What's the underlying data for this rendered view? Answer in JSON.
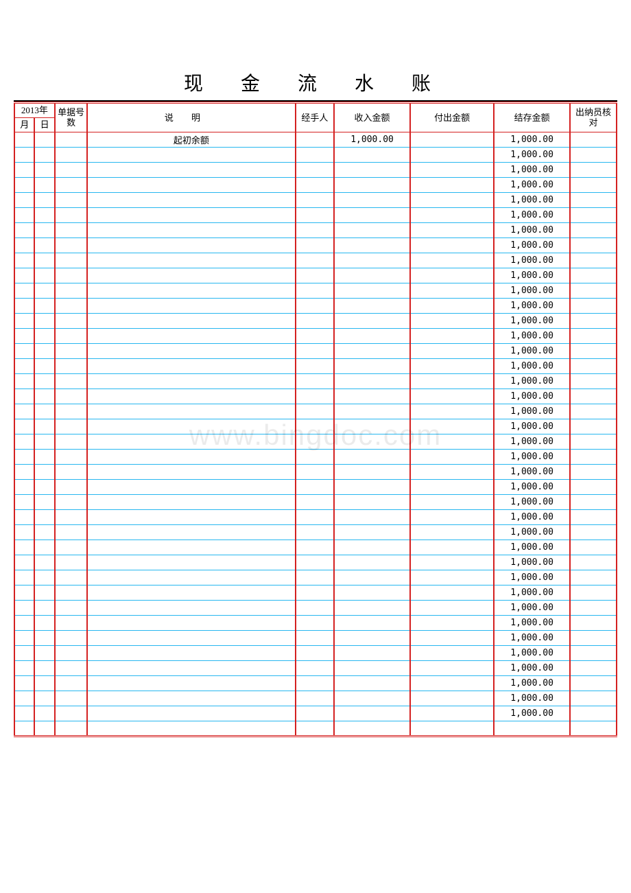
{
  "title": "现 金 流 水 账",
  "watermark": "www.bingdoc.com",
  "header": {
    "year": "2013年",
    "month": "月",
    "day": "日",
    "docno": "单据号数",
    "desc_a": "说",
    "desc_b": "明",
    "handler": "经手人",
    "income": "收入金额",
    "payout": "付出金额",
    "balance": "结存金额",
    "check": "出纳员核对"
  },
  "first_row": {
    "desc": "起初余额",
    "income": "1,000.00",
    "balance": "1,000.00"
  },
  "balance_value": "1,000.00",
  "repeat_rows": 38,
  "colors": {
    "border_red": "#d42020",
    "border_blue": "#27b7f0",
    "text": "#000000",
    "background": "#ffffff"
  }
}
